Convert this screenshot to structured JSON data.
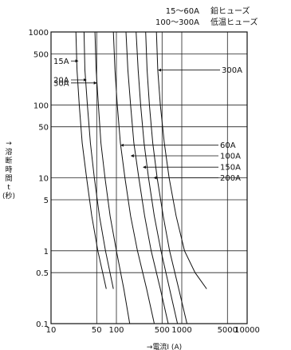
{
  "chart_data": {
    "type": "line",
    "xscale": "log",
    "yscale": "log",
    "xlim": [
      10,
      10000
    ],
    "ylim": [
      0.1,
      1000
    ],
    "grid": true,
    "xlabel": "→電流I (A)",
    "ylabel": "→溶断時間 t (秒)",
    "xticks": [
      10,
      50,
      100,
      500,
      1000,
      5000,
      10000
    ],
    "xtick_labels": [
      "10",
      "50",
      "100",
      "500",
      "1000",
      "5000",
      "10000"
    ],
    "yticks": [
      0.1,
      0.5,
      1,
      5,
      10,
      50,
      100,
      500,
      1000
    ],
    "ytick_labels": [
      "0.1",
      "0.5",
      "1",
      "5",
      "10",
      "50",
      "100",
      "500",
      "1000"
    ],
    "legend": [
      {
        "range": "15〜60A",
        "type": "鉛ヒューズ"
      },
      {
        "range": "100〜300A",
        "type": "低温ヒューズ"
      }
    ],
    "series": [
      {
        "name": "15A",
        "x": [
          24,
          25,
          27,
          30,
          35,
          42,
          52,
          70
        ],
        "y": [
          1000,
          300,
          100,
          30,
          10,
          3,
          1,
          0.3
        ]
      },
      {
        "name": "20A",
        "x": [
          32,
          33,
          36,
          40,
          46,
          55,
          68,
          90
        ],
        "y": [
          1000,
          300,
          100,
          30,
          10,
          3,
          1,
          0.3
        ]
      },
      {
        "name": "30A",
        "x": [
          47,
          49,
          53,
          58,
          67,
          80,
          100,
          130,
          160
        ],
        "y": [
          1000,
          300,
          100,
          30,
          10,
          3,
          1,
          0.3,
          0.1
        ]
      },
      {
        "name": "60A",
        "x": [
          90,
          95,
          103,
          115,
          135,
          165,
          210,
          290,
          380
        ],
        "y": [
          1000,
          300,
          100,
          30,
          10,
          3,
          1,
          0.3,
          0.1
        ]
      },
      {
        "name": "100A",
        "x": [
          140,
          150,
          165,
          185,
          220,
          270,
          340,
          470,
          620
        ],
        "y": [
          1000,
          300,
          100,
          30,
          10,
          3,
          1,
          0.3,
          0.1
        ]
      },
      {
        "name": "150A",
        "x": [
          200,
          215,
          235,
          265,
          310,
          380,
          480,
          650,
          860
        ],
        "y": [
          1000,
          300,
          100,
          30,
          10,
          3,
          1,
          0.3,
          0.1
        ]
      },
      {
        "name": "200A",
        "x": [
          280,
          295,
          320,
          360,
          420,
          520,
          650,
          900,
          1200
        ],
        "y": [
          1000,
          300,
          100,
          30,
          10,
          3,
          1,
          0.3,
          0.1
        ]
      },
      {
        "name": "300A",
        "x": [
          410,
          430,
          470,
          540,
          640,
          820,
          1100,
          1600,
          2400
        ],
        "y": [
          1000,
          300,
          100,
          30,
          10,
          3,
          1,
          0.5,
          0.3
        ]
      }
    ],
    "curve_labels": [
      {
        "text": "15A",
        "x_at": 25.8,
        "y_at": 400,
        "side": "left"
      },
      {
        "text": "20A",
        "x_at": 34.5,
        "y_at": 220,
        "side": "left"
      },
      {
        "text": "30A",
        "x_at": 49.5,
        "y_at": 200,
        "side": "left"
      },
      {
        "text": "60A",
        "x_at": 118,
        "y_at": 28,
        "side": "right"
      },
      {
        "text": "100A",
        "x_at": 168,
        "y_at": 20,
        "side": "right"
      },
      {
        "text": "150A",
        "x_at": 258,
        "y_at": 14,
        "side": "right"
      },
      {
        "text": "200A",
        "x_at": 375,
        "y_at": 10,
        "side": "right"
      },
      {
        "text": "300A",
        "x_at": 440,
        "y_at": 300,
        "side": "right"
      }
    ]
  }
}
